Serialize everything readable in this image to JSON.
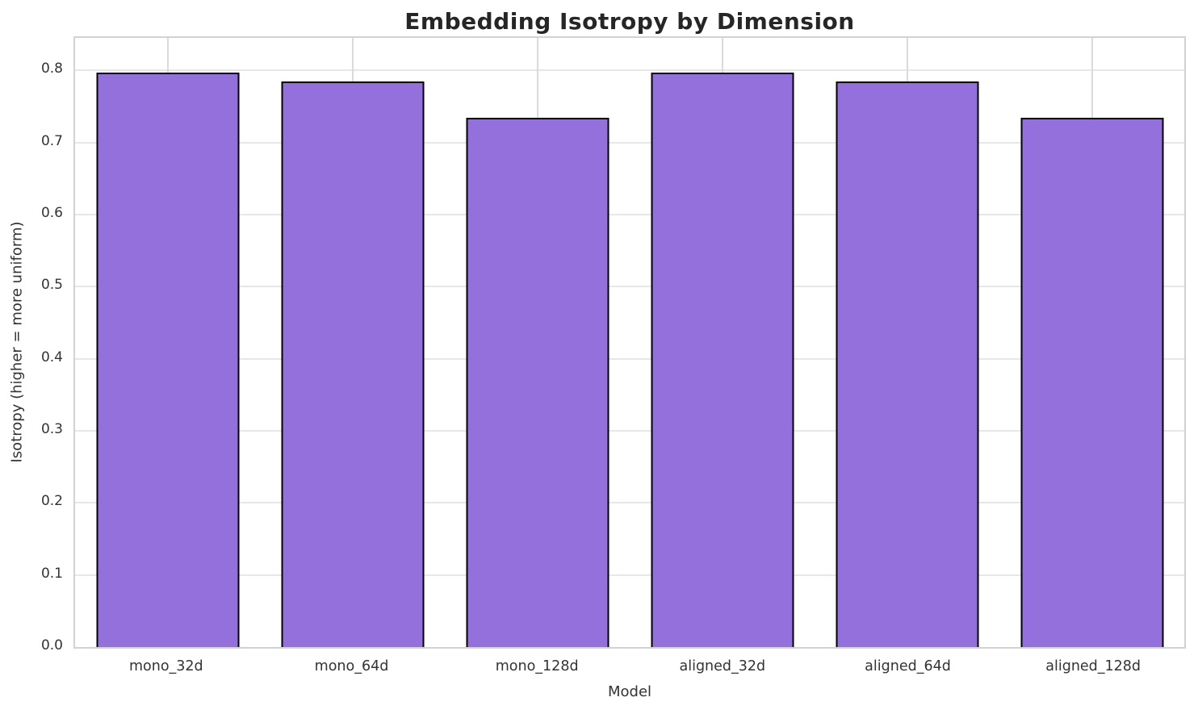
{
  "chart_data": {
    "type": "bar",
    "title": "Embedding Isotropy by Dimension",
    "xlabel": "Model",
    "ylabel": "Isotropy (higher = more uniform)",
    "categories": [
      "mono_32d",
      "mono_64d",
      "mono_128d",
      "aligned_32d",
      "aligned_64d",
      "aligned_128d"
    ],
    "values": [
      0.797,
      0.785,
      0.734,
      0.797,
      0.785,
      0.734
    ],
    "ylim": [
      0,
      0.845
    ],
    "yticks": [
      0.0,
      0.1,
      0.2,
      0.3,
      0.4,
      0.5,
      0.6,
      0.7,
      0.8
    ],
    "ytick_labels": [
      "0.0",
      "0.1",
      "0.2",
      "0.3",
      "0.4",
      "0.5",
      "0.6",
      "0.7",
      "0.8"
    ],
    "grid": true,
    "legend": "none",
    "bar_color": "#9370DB",
    "bar_edge_color": "#000000",
    "grid_color": "#e0e0e0",
    "title_color": "#262626",
    "tick_color": "#333333"
  }
}
